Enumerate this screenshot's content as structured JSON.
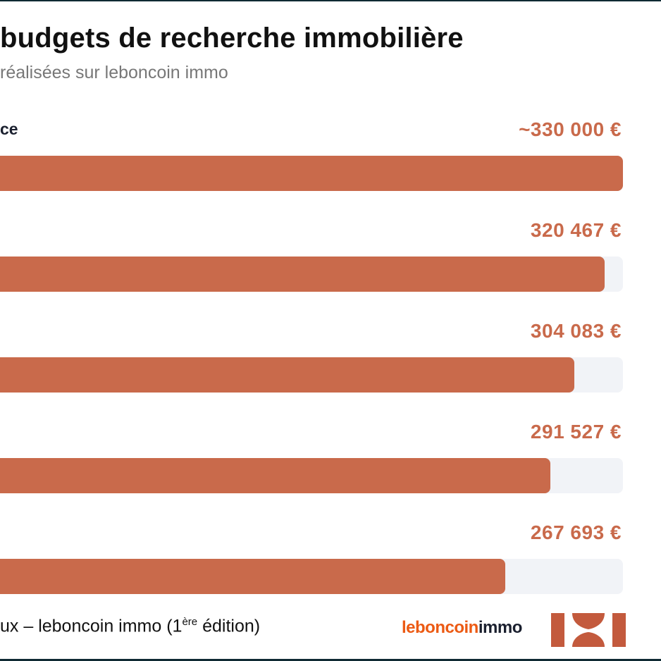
{
  "colors": {
    "bar": "#c96a4b",
    "track": "#f1f3f7",
    "value_text": "#c96a4b",
    "brand_orange": "#ec5a13",
    "brand_dark": "#1a1f2e",
    "logo": "#c35a3d"
  },
  "chart_data": {
    "type": "bar",
    "orientation": "horizontal",
    "title": "budgets de recherche immobilière",
    "subtitle": "réalisées sur leboncoin immo",
    "categories": [
      "ce",
      "",
      "",
      "",
      ""
    ],
    "value_labels": [
      "~330 000 €",
      "320 467 €",
      "304 083 €",
      "291 527 €",
      "267 693 €"
    ],
    "values": [
      330000,
      320467,
      304083,
      291527,
      267693
    ],
    "xlim": [
      0,
      330000
    ],
    "grid": false,
    "legend": "none"
  },
  "footer": {
    "source_prefix": "ux – leboncoin immo (1",
    "source_sup": "ère",
    "source_suffix": " édition)"
  },
  "brand": {
    "part1": "leboncoin",
    "part2": "immo",
    "logo_icon": "leboncoin-immo-logo-icon"
  }
}
